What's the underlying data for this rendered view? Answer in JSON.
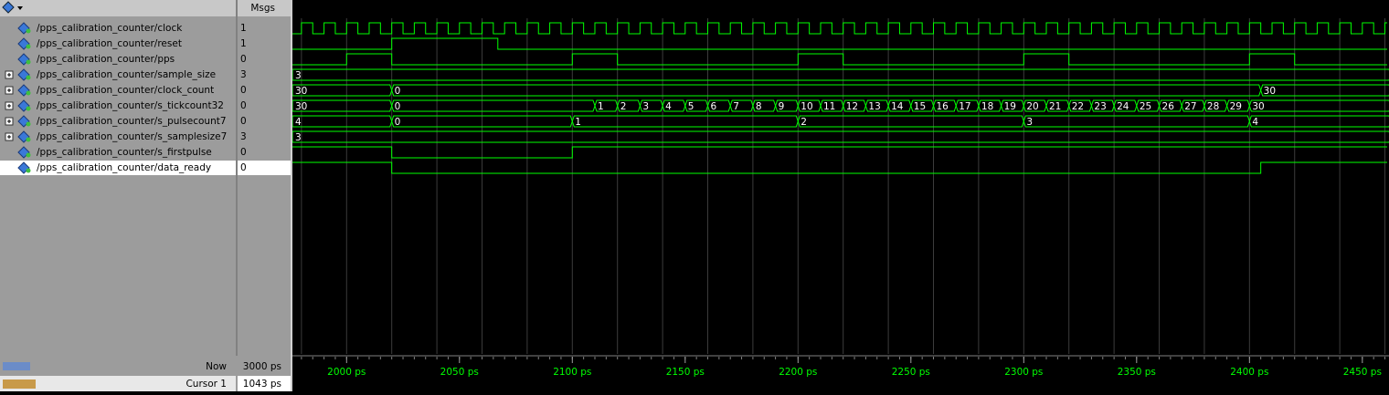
{
  "toolbar": {
    "msgs_header": "Msgs"
  },
  "waveform": {
    "view": [
      1976,
      2461
    ],
    "grid_step": 20,
    "minor_tick_step": 5,
    "ticks": [
      {
        "value": 2000,
        "label": "2000 ps"
      },
      {
        "value": 2050,
        "label": "2050 ps"
      },
      {
        "value": 2100,
        "label": "2100 ps"
      },
      {
        "value": 2150,
        "label": "2150 ps"
      },
      {
        "value": 2200,
        "label": "2200 ps"
      },
      {
        "value": 2250,
        "label": "2250 ps"
      },
      {
        "value": 2300,
        "label": "2300 ps"
      },
      {
        "value": 2350,
        "label": "2350 ps"
      },
      {
        "value": 2400,
        "label": "2400 ps"
      },
      {
        "value": 2450,
        "label": "2450 ps"
      }
    ],
    "signals": [
      {
        "name": "/pps_calibration_counter/clock",
        "msg": "1",
        "kind": "clock",
        "period": 10
      },
      {
        "name": "/pps_calibration_counter/reset",
        "msg": "1",
        "kind": "bit",
        "initial": 0,
        "edges": [
          2020,
          2067
        ]
      },
      {
        "name": "/pps_calibration_counter/pps",
        "msg": "0",
        "kind": "bit",
        "initial": 0,
        "edges": [
          2000,
          2020,
          2100,
          2120,
          2200,
          2220,
          2300,
          2320,
          2400,
          2420
        ]
      },
      {
        "name": "/pps_calibration_counter/sample_size",
        "msg": "3",
        "kind": "bus",
        "segments": [
          {
            "start": 1976,
            "label": "3"
          }
        ]
      },
      {
        "name": "/pps_calibration_counter/clock_count",
        "msg": "0",
        "kind": "bus",
        "segments": [
          {
            "start": 1976,
            "label": "30"
          },
          {
            "start": 2020,
            "label": "0"
          },
          {
            "start": 2405,
            "label": "30"
          }
        ]
      },
      {
        "name": "/pps_calibration_counter/s_tickcount32",
        "msg": "0",
        "kind": "bus",
        "segments": [
          {
            "start": 1976,
            "label": "30"
          },
          {
            "start": 2020,
            "label": "0"
          },
          {
            "start": 2110,
            "label": "1"
          },
          {
            "start": 2120,
            "label": "2"
          },
          {
            "start": 2130,
            "label": "3"
          },
          {
            "start": 2140,
            "label": "4"
          },
          {
            "start": 2150,
            "label": "5"
          },
          {
            "start": 2160,
            "label": "6"
          },
          {
            "start": 2170,
            "label": "7"
          },
          {
            "start": 2180,
            "label": "8"
          },
          {
            "start": 2190,
            "label": "9"
          },
          {
            "start": 2200,
            "label": "10"
          },
          {
            "start": 2210,
            "label": "11"
          },
          {
            "start": 2220,
            "label": "12"
          },
          {
            "start": 2230,
            "label": "13"
          },
          {
            "start": 2240,
            "label": "14"
          },
          {
            "start": 2250,
            "label": "15"
          },
          {
            "start": 2260,
            "label": "16"
          },
          {
            "start": 2270,
            "label": "17"
          },
          {
            "start": 2280,
            "label": "18"
          },
          {
            "start": 2290,
            "label": "19"
          },
          {
            "start": 2300,
            "label": "20"
          },
          {
            "start": 2310,
            "label": "21"
          },
          {
            "start": 2320,
            "label": "22"
          },
          {
            "start": 2330,
            "label": "23"
          },
          {
            "start": 2340,
            "label": "24"
          },
          {
            "start": 2350,
            "label": "25"
          },
          {
            "start": 2360,
            "label": "26"
          },
          {
            "start": 2370,
            "label": "27"
          },
          {
            "start": 2380,
            "label": "28"
          },
          {
            "start": 2390,
            "label": "29"
          },
          {
            "start": 2400,
            "label": "30"
          }
        ]
      },
      {
        "name": "/pps_calibration_counter/s_pulsecount7",
        "msg": "0",
        "kind": "bus",
        "segments": [
          {
            "start": 1976,
            "label": "4"
          },
          {
            "start": 2020,
            "label": "0"
          },
          {
            "start": 2100,
            "label": "1"
          },
          {
            "start": 2200,
            "label": "2"
          },
          {
            "start": 2300,
            "label": "3"
          },
          {
            "start": 2400,
            "label": "4"
          }
        ]
      },
      {
        "name": "/pps_calibration_counter/s_samplesize7",
        "msg": "3",
        "kind": "bus",
        "segments": [
          {
            "start": 1976,
            "label": "3"
          }
        ]
      },
      {
        "name": "/pps_calibration_counter/s_firstpulse",
        "msg": "0",
        "kind": "bit",
        "initial": 1,
        "edges": [
          2020,
          2100
        ]
      },
      {
        "name": "/pps_calibration_counter/data_ready",
        "msg": "0",
        "kind": "bit",
        "initial": 1,
        "edges": [
          2020,
          2405
        ],
        "selected": true
      }
    ]
  },
  "status": {
    "now_label": "Now",
    "now_value": "3000 ps",
    "cursor_label": "Cursor 1",
    "cursor_value": "1043 ps"
  }
}
